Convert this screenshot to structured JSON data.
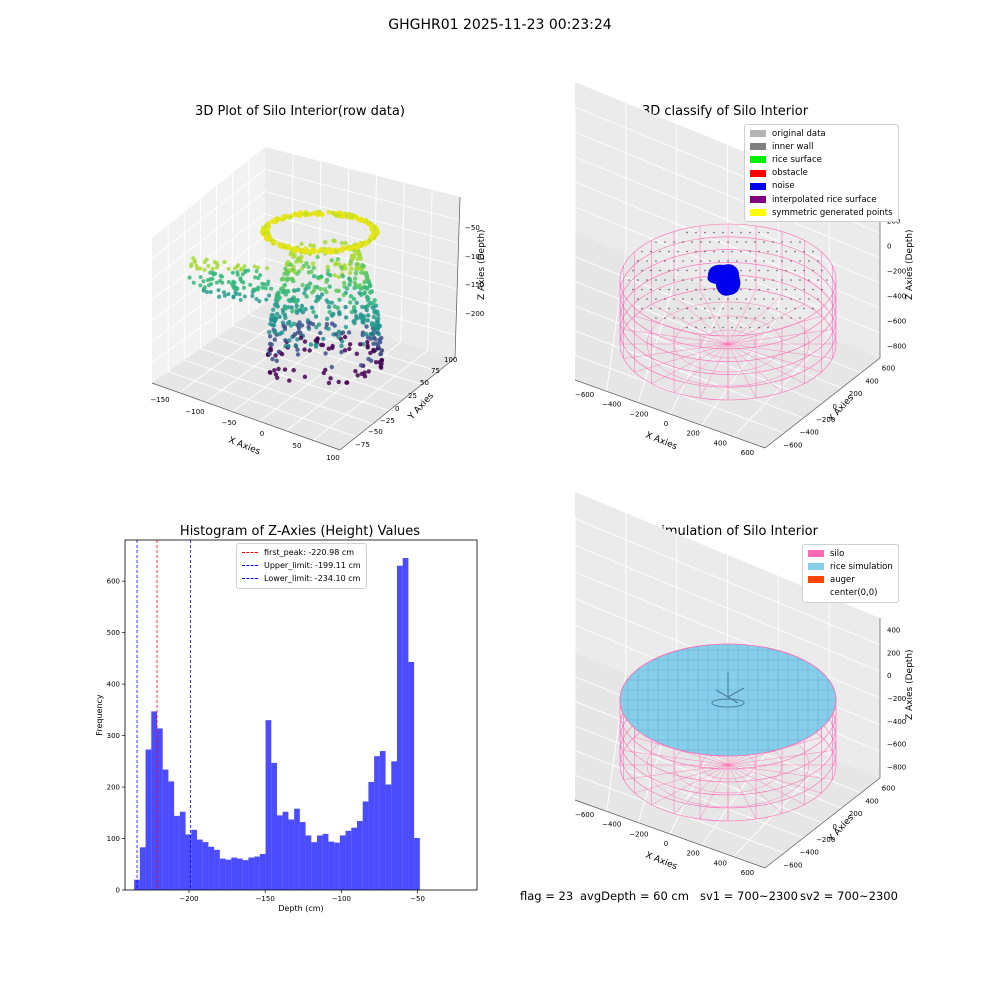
{
  "suptitle": "GHGHR01 2025-11-23 00:23:24",
  "chart_data": [
    {
      "type": "scatter",
      "title": "3D Plot of Silo Interior(row data)",
      "xlabel": "X Axies",
      "ylabel": "Y Axies",
      "zlabel": "Z Axies (Depth)",
      "x_ticks": [
        "−150",
        "−100",
        "−50",
        "0",
        "50",
        "100"
      ],
      "y_ticks": [
        "−75",
        "−50",
        "−25",
        "0",
        "25",
        "50",
        "75",
        "100"
      ],
      "z_ticks": [
        "−50",
        "−100",
        "−150",
        "−200"
      ],
      "xlim": [
        -160,
        110
      ],
      "ylim": [
        -85,
        110
      ],
      "zlim": [
        -240,
        -20
      ],
      "colormap": "viridis"
    },
    {
      "type": "scatter",
      "title": "3D classify of Silo Interior",
      "xlabel": "X Axies",
      "ylabel": "Y Axies",
      "zlabel": "Z Axies (Depth)",
      "x_ticks": [
        "−600",
        "−400",
        "−200",
        "0",
        "200",
        "400",
        "600"
      ],
      "y_ticks": [
        "−600",
        "−400",
        "−200",
        "0",
        "200",
        "400",
        "600"
      ],
      "z_ticks": [
        "200",
        "0",
        "−200",
        "−400",
        "−600",
        "−800"
      ],
      "legend": [
        {
          "label": "original data",
          "color": "#b4b4b4"
        },
        {
          "label": "inner wall",
          "color": "#808080"
        },
        {
          "label": "rice surface",
          "color": "#00ee00"
        },
        {
          "label": "obstacle",
          "color": "#ff0000"
        },
        {
          "label": "noise",
          "color": "#0000ee"
        },
        {
          "label": "interpolated rice surface",
          "color": "#800080"
        },
        {
          "label": "symmetric generated points",
          "color": "#ffff00"
        }
      ],
      "legend_position": "top-right"
    },
    {
      "type": "bar",
      "title": "Histogram of Z-Axies (Height) Values",
      "xlabel": "Depth (cm)",
      "ylabel": "Frequency",
      "xlim": [
        -242,
        -11
      ],
      "ylim": [
        0,
        680
      ],
      "x_ticks": [
        -200,
        -150,
        -100,
        -50
      ],
      "y_ticks": [
        0,
        100,
        200,
        300,
        400,
        500,
        600
      ],
      "bin_start": -236,
      "bin_width": 3.75,
      "values": [
        20,
        83,
        273,
        347,
        314,
        234,
        211,
        144,
        152,
        108,
        117,
        98,
        93,
        84,
        78,
        61,
        59,
        63,
        61,
        58,
        63,
        65,
        70,
        330,
        247,
        145,
        152,
        137,
        158,
        132,
        106,
        93,
        106,
        109,
        94,
        92,
        106,
        115,
        121,
        134,
        172,
        210,
        260,
        270,
        205,
        250,
        630,
        645,
        443,
        101
      ],
      "color": "#0000ff",
      "vlines": [
        {
          "label": "first_peak: -220.98 cm",
          "x": -220.98,
          "color": "#ff0000"
        },
        {
          "label": "Upper_limit: -199.11 cm",
          "x": -199.11,
          "color": "#0000ff"
        },
        {
          "label": "Lower_limit: -234.10 cm",
          "x": -234.1,
          "color": "#0000ff"
        }
      ],
      "legend_position": "top-center"
    },
    {
      "type": "scatter",
      "title": "3D simulation of Silo Interior",
      "xlabel": "X Axies",
      "ylabel": "Y Axies",
      "zlabel": "Z Axies (Depth)",
      "x_ticks": [
        "−600",
        "−400",
        "−200",
        "0",
        "200",
        "400",
        "600"
      ],
      "y_ticks": [
        "−600",
        "−400",
        "−200",
        "0",
        "200",
        "400",
        "600"
      ],
      "z_ticks": [
        "400",
        "200",
        "0",
        "−200",
        "−400",
        "−600",
        "−800"
      ],
      "legend": [
        {
          "label": "silo",
          "color": "#ff69b4"
        },
        {
          "label": "rice simulation",
          "color": "#87ceeb"
        },
        {
          "label": "auger",
          "color": "#ff4500"
        },
        {
          "label": "center(0,0)",
          "color": "#ffffff"
        }
      ],
      "legend_position": "top-right"
    }
  ],
  "footer": {
    "flag": "flag = 23",
    "avg_depth": "avgDepth = 60 cm",
    "sv1": "sv1 = 700~2300",
    "sv2": "sv2 = 700~2300"
  }
}
